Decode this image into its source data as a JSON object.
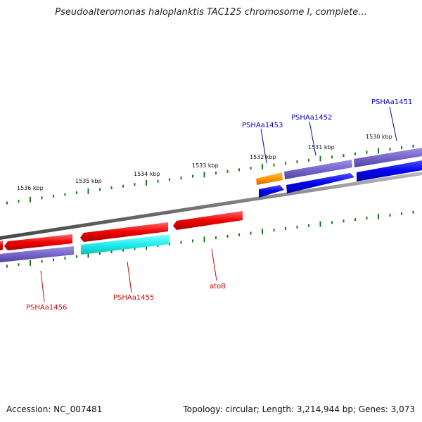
{
  "header": {
    "title": "Pseudoalteromonas haloplanktis TAC125 chromosome I, complete..."
  },
  "footer": {
    "accession": "Accession: NC_007481",
    "summary": "Topology: circular; Length: 3,214,944 bp; Genes: 3,073"
  },
  "colors": {
    "backbone": "#7a7a7a",
    "tick": "#1a7a1a",
    "forward_label": "#0000cc",
    "reverse_label": "#cc0000",
    "forward_gene": "#0000ee",
    "reverse_gene": "#ee0000",
    "cds_purple": "#7766cc",
    "cds_cyan": "#22eeee",
    "orange": "#ff9900"
  },
  "ruler": {
    "labels": [
      "1530 kbp",
      "1531 kbp",
      "1532 kbp",
      "1533 kbp",
      "1534 kbp",
      "1535 kbp",
      "1536 kbp"
    ]
  },
  "genes": [
    {
      "name": "PSHAa1451",
      "strand": "forward"
    },
    {
      "name": "PSHAa1452",
      "strand": "forward"
    },
    {
      "name": "PSHAa1453",
      "strand": "forward"
    },
    {
      "name": "atoB",
      "strand": "reverse"
    },
    {
      "name": "PSHAa1455",
      "strand": "reverse"
    },
    {
      "name": "PSHAa1456",
      "strand": "reverse"
    }
  ]
}
